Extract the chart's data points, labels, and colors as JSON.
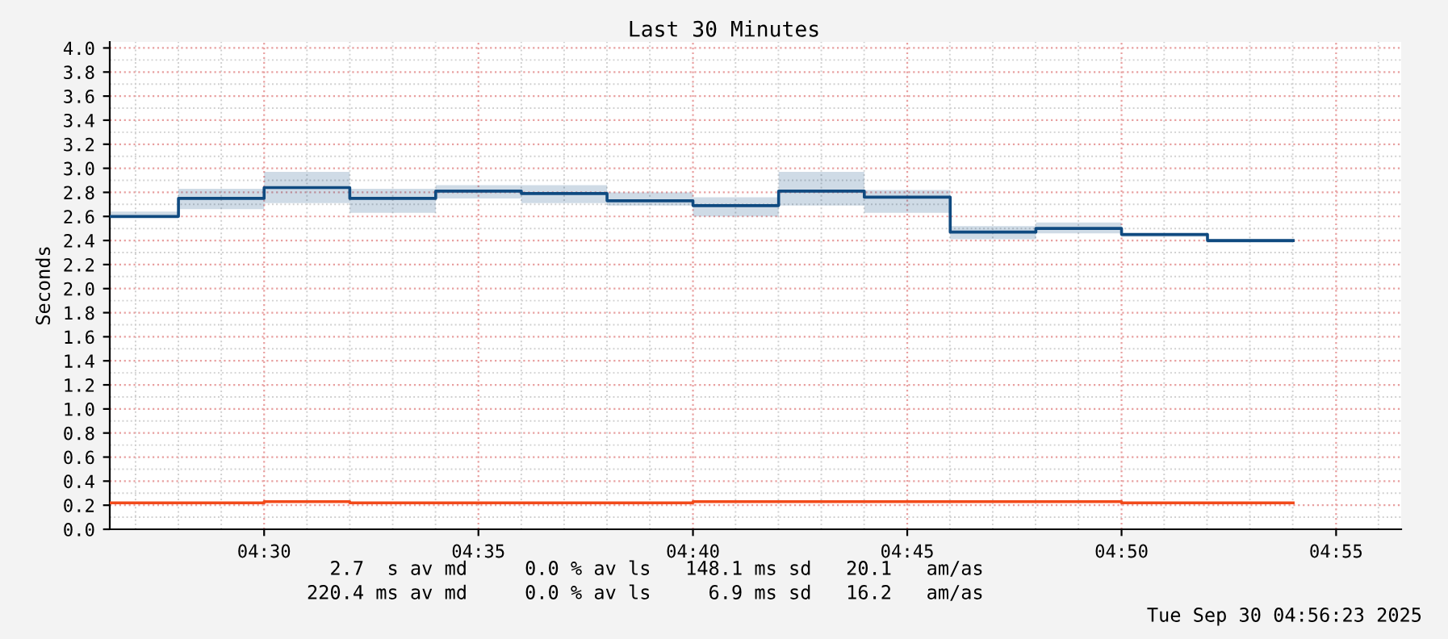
{
  "chart_data": {
    "type": "step",
    "title": "Last 30 Minutes",
    "ylabel": "Seconds",
    "x": [
      4.44,
      4.4667,
      4.5,
      4.5333,
      4.5667,
      4.6,
      4.6333,
      4.6667,
      4.7,
      4.7333,
      4.7667,
      4.8,
      4.8333,
      4.8667,
      4.9
    ],
    "series": [
      {
        "color": "#0f4a80",
        "values": [
          2.6,
          2.75,
          2.84,
          2.75,
          2.81,
          2.79,
          2.73,
          2.69,
          2.81,
          2.76,
          2.47,
          2.5,
          2.45,
          2.4,
          2.4
        ],
        "lower": [
          2.58,
          2.66,
          2.71,
          2.63,
          2.75,
          2.71,
          2.69,
          2.6,
          2.69,
          2.63,
          2.41,
          2.46,
          2.43,
          2.38,
          2.38
        ],
        "upper": [
          2.64,
          2.83,
          2.97,
          2.83,
          2.86,
          2.86,
          2.8,
          2.76,
          2.97,
          2.82,
          2.52,
          2.55,
          2.46,
          2.41,
          2.41
        ]
      },
      {
        "color": "#f24a1a",
        "values": [
          0.22,
          0.22,
          0.23,
          0.22,
          0.22,
          0.22,
          0.22,
          0.23,
          0.23,
          0.23,
          0.23,
          0.23,
          0.22,
          0.22,
          0.22
        ]
      }
    ],
    "xlim": [
      4.44,
      4.942
    ],
    "xticks": [
      {
        "value": 4.5,
        "label": "04:30"
      },
      {
        "value": 4.5833,
        "label": "04:35"
      },
      {
        "value": 4.6667,
        "label": "04:40"
      },
      {
        "value": 4.75,
        "label": "04:45"
      },
      {
        "value": 4.8333,
        "label": "04:50"
      },
      {
        "value": 4.9167,
        "label": "04:55"
      }
    ],
    "ylim": [
      0,
      4.05
    ],
    "yticks": [
      {
        "value": 0,
        "label": "0.0"
      },
      0.2,
      0.4,
      0.6,
      0.8,
      {
        "value": 1,
        "label": "1.0"
      },
      1.2,
      1.4,
      1.6,
      1.8,
      {
        "value": 2,
        "label": "2.0"
      },
      2.2,
      2.4,
      2.6,
      2.8,
      {
        "value": 3,
        "label": "3.0"
      },
      3.2,
      3.4,
      3.6,
      3.8,
      {
        "value": 4,
        "label": "4.0"
      }
    ],
    "grid": true,
    "annotations": [
      "  2.7  s av md     0.0 % av ls   148.1 ms sd   20.1   am/as",
      "220.4 ms av md     0.0 % av ls     6.9 ms sd   16.2   am/as",
      "Tue Sep 30 04:56:23 2025"
    ]
  }
}
